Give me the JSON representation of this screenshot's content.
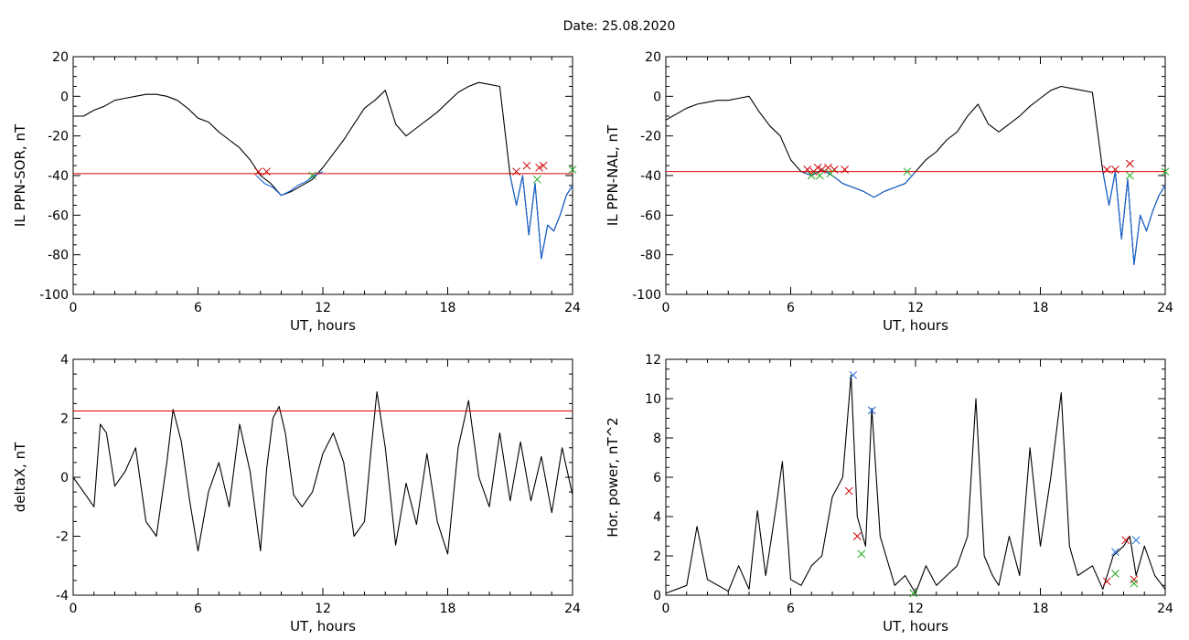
{
  "figure": {
    "title": "Date:  25.08.2020"
  },
  "chart_data": [
    {
      "id": "p1",
      "type": "line",
      "xlabel": "UT, hours",
      "ylabel": "IL PPN-SOR, nT",
      "xlim": [
        0,
        24
      ],
      "ylim": [
        -100,
        20
      ],
      "xticks": [
        0,
        6,
        12,
        18,
        24
      ],
      "yticks": [
        -100,
        -80,
        -60,
        -40,
        -20,
        0,
        20
      ],
      "threshold": -39,
      "series": [
        {
          "color": "#000000",
          "x": [
            0,
            0.5,
            1,
            1.5,
            2,
            2.5,
            3,
            3.5,
            4,
            4.5,
            5,
            5.5,
            6,
            6.5,
            7,
            7.5,
            8,
            8.5,
            9,
            9.5,
            10,
            10.5,
            11,
            11.5,
            12,
            12.5,
            13,
            13.5,
            14,
            14.5,
            15,
            15.5,
            16,
            16.5,
            17,
            17.5,
            18,
            18.5,
            19,
            19.5,
            20,
            20.5,
            21,
            21.3,
            21.6,
            21.9,
            22.2,
            22.5,
            22.8,
            23.1,
            23.4,
            23.7,
            24
          ],
          "y": [
            -10,
            -10,
            -7,
            -5,
            -2,
            -1,
            0,
            1,
            1,
            0,
            -2,
            -6,
            -11,
            -13,
            -18,
            -22,
            -26,
            -32,
            -40,
            -44,
            -50,
            -48,
            -45,
            -42,
            -36,
            -29,
            -22,
            -14,
            -6,
            -2,
            3,
            -14,
            -20,
            -16,
            -12,
            -8,
            -3,
            2,
            5,
            7,
            6,
            5,
            -40,
            -55,
            -40,
            -70,
            -44,
            -82,
            -65,
            -68,
            -60,
            -50,
            -45
          ]
        },
        {
          "color": "#1565d8",
          "x": [
            8.8,
            9.2,
            9.6,
            10,
            10.4,
            10.8,
            11.2,
            11.6,
            12
          ],
          "y": [
            -40,
            -44,
            -46,
            -50,
            -48,
            -45,
            -43,
            -40,
            -38
          ]
        },
        {
          "color": "#1565d8",
          "x": [
            21,
            21.3,
            21.6,
            21.9,
            22.2,
            22.5,
            22.8,
            23.1,
            23.4,
            23.7,
            24
          ],
          "y": [
            -40,
            -55,
            -40,
            -70,
            -44,
            -82,
            -65,
            -68,
            -60,
            -50,
            -45
          ]
        }
      ],
      "markers": [
        {
          "color": "#cc0000",
          "points": [
            [
              8.9,
              -38
            ],
            [
              9.3,
              -38
            ],
            [
              21.3,
              -38
            ],
            [
              21.8,
              -35
            ],
            [
              22.4,
              -36
            ],
            [
              22.6,
              -35
            ]
          ]
        },
        {
          "color": "#22aa22",
          "points": [
            [
              11.5,
              -40
            ],
            [
              22.3,
              -42
            ],
            [
              24,
              -37
            ]
          ]
        }
      ]
    },
    {
      "id": "p2",
      "type": "line",
      "xlabel": "UT, hours",
      "ylabel": "IL PPN-NAL, nT",
      "xlim": [
        0,
        24
      ],
      "ylim": [
        -100,
        20
      ],
      "xticks": [
        0,
        6,
        12,
        18,
        24
      ],
      "yticks": [
        -100,
        -80,
        -60,
        -40,
        -20,
        0,
        20
      ],
      "threshold": -38,
      "series": [
        {
          "color": "#000000",
          "x": [
            0,
            0.5,
            1,
            1.5,
            2,
            2.5,
            3,
            3.5,
            4,
            4.5,
            5,
            5.5,
            6,
            6.5,
            7,
            7.5,
            8,
            8.5,
            9,
            9.5,
            10,
            10.5,
            11,
            11.5,
            12,
            12.5,
            13,
            13.5,
            14,
            14.5,
            15,
            15.5,
            16,
            16.5,
            17,
            17.5,
            18,
            18.5,
            19,
            19.5,
            20,
            20.5,
            21,
            21.3,
            21.6,
            21.9,
            22.2,
            22.5,
            22.8,
            23.1,
            23.4,
            23.7,
            24
          ],
          "y": [
            -12,
            -9,
            -6,
            -4,
            -3,
            -2,
            -2,
            -1,
            0,
            -8,
            -15,
            -20,
            -32,
            -38,
            -40,
            -37,
            -40,
            -44,
            -46,
            -48,
            -51,
            -48,
            -46,
            -44,
            -38,
            -32,
            -28,
            -22,
            -18,
            -10,
            -4,
            -14,
            -18,
            -14,
            -10,
            -5,
            -1,
            3,
            5,
            4,
            3,
            2,
            -38,
            -55,
            -38,
            -72,
            -42,
            -85,
            -60,
            -68,
            -58,
            -50,
            -45
          ]
        },
        {
          "color": "#1565d8",
          "x": [
            6.5,
            7,
            7.5,
            8,
            8.5,
            9,
            9.5,
            10,
            10.5,
            11,
            11.5,
            12
          ],
          "y": [
            -38,
            -40,
            -37,
            -40,
            -44,
            -46,
            -48,
            -51,
            -48,
            -46,
            -44,
            -38
          ]
        },
        {
          "color": "#1565d8",
          "x": [
            21,
            21.3,
            21.6,
            21.9,
            22.2,
            22.5,
            22.8,
            23.1,
            23.4,
            23.7,
            24
          ],
          "y": [
            -38,
            -55,
            -38,
            -72,
            -42,
            -85,
            -60,
            -68,
            -58,
            -50,
            -45
          ]
        }
      ],
      "markers": [
        {
          "color": "#cc0000",
          "points": [
            [
              6.8,
              -37
            ],
            [
              7.1,
              -38
            ],
            [
              7.3,
              -36
            ],
            [
              7.5,
              -37
            ],
            [
              7.8,
              -36
            ],
            [
              8.1,
              -37
            ],
            [
              8.6,
              -37
            ],
            [
              21.2,
              -37
            ],
            [
              21.6,
              -37
            ],
            [
              22.3,
              -34
            ]
          ]
        },
        {
          "color": "#22aa22",
          "points": [
            [
              7.0,
              -40
            ],
            [
              7.4,
              -40
            ],
            [
              7.9,
              -39
            ],
            [
              11.6,
              -38
            ],
            [
              22.3,
              -40
            ],
            [
              24,
              -38
            ]
          ]
        }
      ]
    },
    {
      "id": "p3",
      "type": "line",
      "xlabel": "UT, hours",
      "ylabel": "deltaX, nT",
      "xlim": [
        0,
        24
      ],
      "ylim": [
        -4,
        4
      ],
      "xticks": [
        0,
        6,
        12,
        18,
        24
      ],
      "yticks": [
        -4,
        -2,
        0,
        2,
        4
      ],
      "threshold": 2.25,
      "series": [
        {
          "color": "#000000",
          "x": [
            0,
            0.5,
            1,
            1.3,
            1.6,
            2,
            2.5,
            3,
            3.5,
            4,
            4.5,
            4.8,
            5.2,
            5.6,
            6,
            6.5,
            7,
            7.5,
            8,
            8.5,
            9,
            9.3,
            9.6,
            9.9,
            10.2,
            10.6,
            11,
            11.5,
            12,
            12.5,
            13,
            13.5,
            14,
            14.3,
            14.6,
            15,
            15.5,
            16,
            16.5,
            17,
            17.5,
            18,
            18.5,
            19,
            19.5,
            20,
            20.5,
            21,
            21.5,
            22,
            22.5,
            23,
            23.5,
            24
          ],
          "y": [
            0,
            -0.5,
            -1,
            1.8,
            1.5,
            -0.3,
            0.2,
            1.0,
            -1.5,
            -2.0,
            0.5,
            2.3,
            1.2,
            -0.8,
            -2.5,
            -0.5,
            0.5,
            -1.0,
            1.8,
            0.2,
            -2.5,
            0.3,
            2.0,
            2.4,
            1.5,
            -0.6,
            -1.0,
            -0.5,
            0.8,
            1.5,
            0.5,
            -2.0,
            -1.5,
            0.8,
            2.9,
            1.0,
            -2.3,
            -0.2,
            -1.6,
            0.8,
            -1.5,
            -2.6,
            1.0,
            2.6,
            0,
            -1.0,
            1.5,
            -0.8,
            1.2,
            -0.8,
            0.7,
            -1.2,
            1.0,
            -0.6
          ]
        }
      ],
      "markers": []
    },
    {
      "id": "p4",
      "type": "line",
      "xlabel": "UT, hours",
      "ylabel": "Hor. power, nT^2",
      "xlim": [
        0,
        24
      ],
      "ylim": [
        0,
        12
      ],
      "xticks": [
        0,
        6,
        12,
        18,
        24
      ],
      "yticks": [
        0,
        2,
        4,
        6,
        8,
        10,
        12
      ],
      "series": [
        {
          "color": "#000000",
          "x": [
            0,
            1,
            1.5,
            2,
            3,
            3.5,
            4,
            4.4,
            4.8,
            5.3,
            5.6,
            6,
            6.5,
            7,
            7.5,
            8,
            8.5,
            8.9,
            9.2,
            9.6,
            9.9,
            10.3,
            11,
            11.5,
            12,
            12.5,
            13,
            13.5,
            14,
            14.5,
            14.9,
            15.3,
            15.7,
            16,
            16.5,
            17,
            17.5,
            18,
            18.5,
            19,
            19.4,
            19.8,
            20.5,
            21,
            21.5,
            22,
            22.3,
            22.6,
            23,
            23.5,
            24
          ],
          "y": [
            0.1,
            0.5,
            3.5,
            0.8,
            0.2,
            1.5,
            0.3,
            4.3,
            1.0,
            4.5,
            6.8,
            0.8,
            0.5,
            1.5,
            2.0,
            5.0,
            6.0,
            11.2,
            4.0,
            2.5,
            9.5,
            3.0,
            0.5,
            1.0,
            0.1,
            1.5,
            0.5,
            1.0,
            1.5,
            3.0,
            10.0,
            2.0,
            1.0,
            0.5,
            3.0,
            1.0,
            7.5,
            2.5,
            6.0,
            10.3,
            2.5,
            1.0,
            1.5,
            0.3,
            2.0,
            2.5,
            3.0,
            1.0,
            2.5,
            1.0,
            0.3
          ]
        }
      ],
      "markers": [
        {
          "color": "#1565d8",
          "points": [
            [
              9.0,
              11.2
            ],
            [
              9.9,
              9.4
            ],
            [
              21.6,
              2.2
            ],
            [
              22.6,
              2.8
            ]
          ]
        },
        {
          "color": "#cc0000",
          "points": [
            [
              8.8,
              5.3
            ],
            [
              9.2,
              3.0
            ],
            [
              21.2,
              0.7
            ],
            [
              22.1,
              2.8
            ],
            [
              22.5,
              0.8
            ]
          ]
        },
        {
          "color": "#22aa22",
          "points": [
            [
              9.4,
              2.1
            ],
            [
              11.9,
              0.1
            ],
            [
              21.6,
              1.1
            ],
            [
              22.5,
              0.6
            ]
          ]
        }
      ]
    }
  ]
}
